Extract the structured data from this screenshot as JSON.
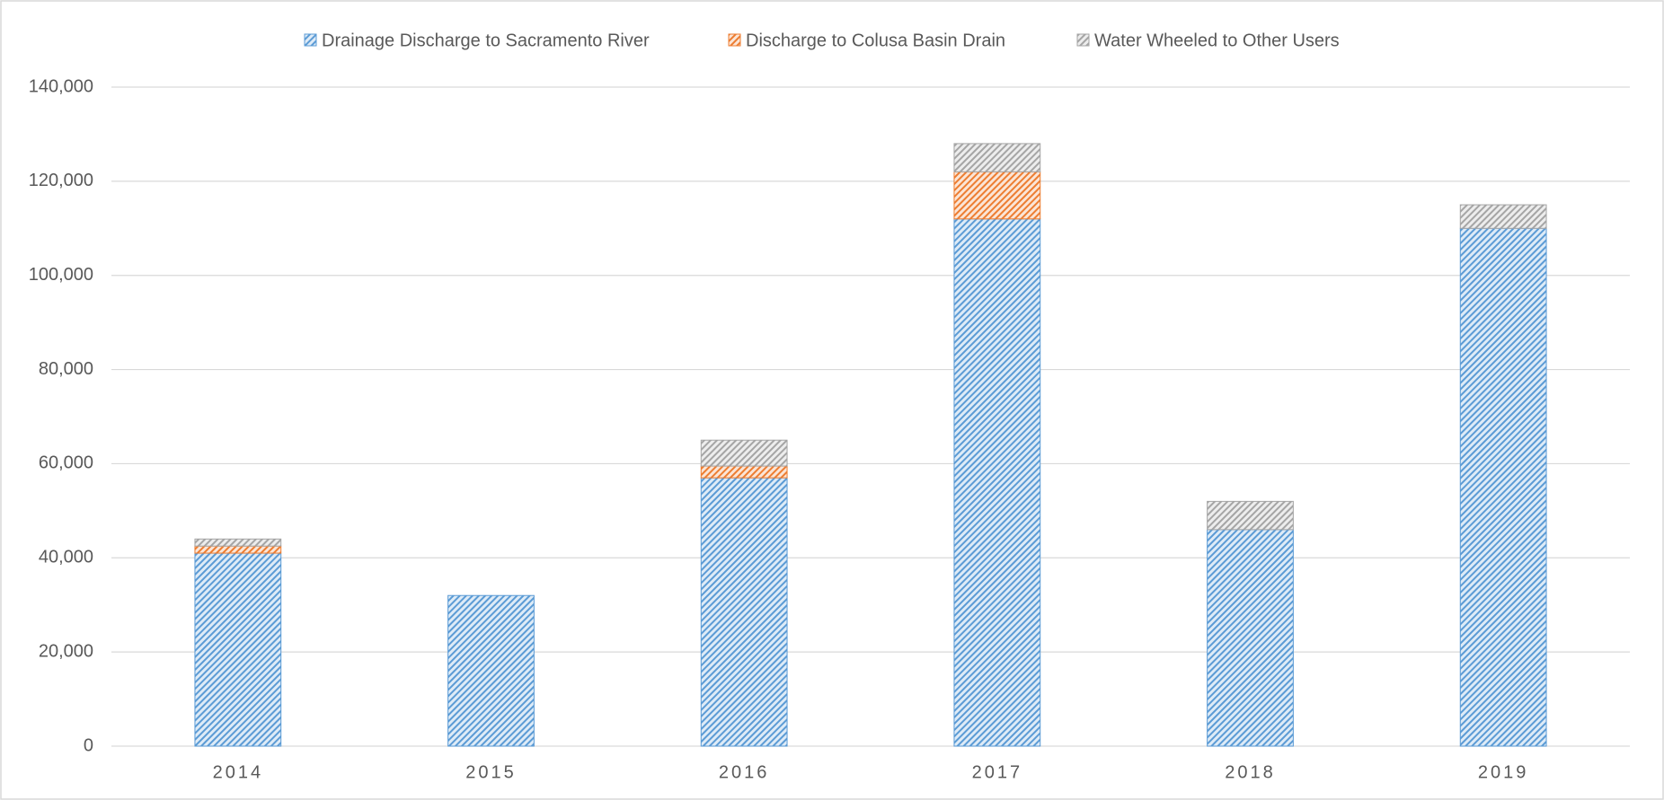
{
  "chart_data": {
    "type": "stacked-bar",
    "categories": [
      "2014",
      "2015",
      "2016",
      "2017",
      "2018",
      "2019"
    ],
    "series": [
      {
        "name": "Drainage Discharge to Sacramento River",
        "color": "#5b9bd5",
        "values": [
          41000,
          32000,
          57000,
          112000,
          46000,
          110000
        ]
      },
      {
        "name": "Discharge to Colusa Basin Drain",
        "color": "#ed7d31",
        "values": [
          1500,
          0,
          2500,
          10000,
          0,
          0
        ]
      },
      {
        "name": "Water Wheeled to Other Users",
        "color": "#a5a5a5",
        "values": [
          1500,
          0,
          5500,
          6000,
          6000,
          5000
        ]
      }
    ],
    "ylim": [
      0,
      140000
    ],
    "yticks": [
      0,
      {
        "value": 20000,
        "label": "20,000"
      },
      {
        "value": 40000,
        "label": "40,000"
      },
      {
        "value": 60000,
        "label": "60,000"
      },
      {
        "value": 80000,
        "label": "80,000"
      },
      {
        "value": 100000,
        "label": "100,000"
      },
      {
        "value": 120000,
        "label": "120,000"
      },
      {
        "value": 140000,
        "label": "140,000"
      }
    ],
    "grid": true,
    "legend": "top"
  }
}
